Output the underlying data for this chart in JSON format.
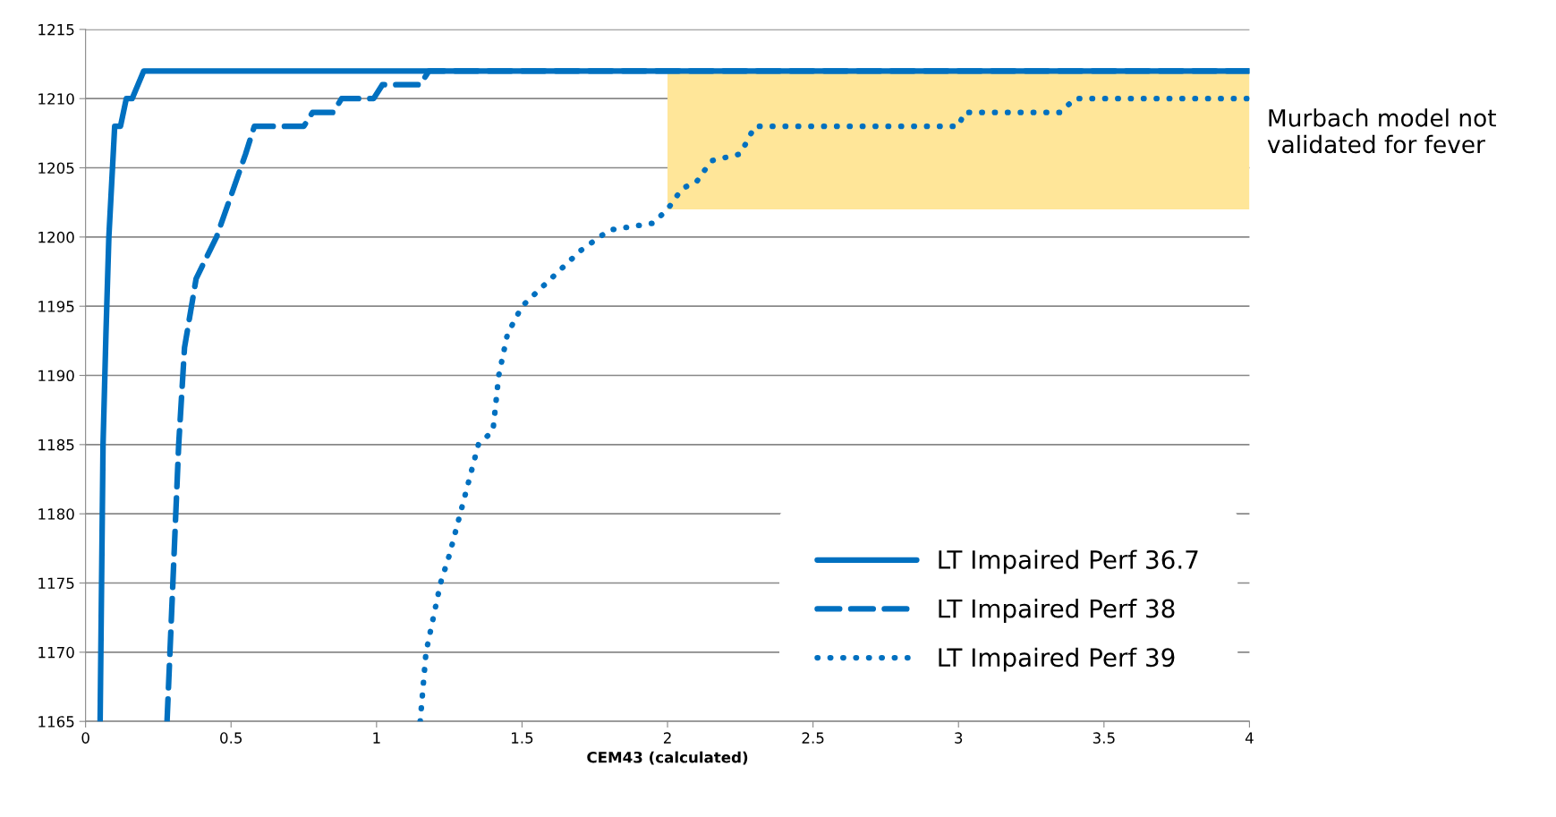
{
  "chart_data": {
    "type": "line",
    "xlabel": "CEM43 (calculated)",
    "xlim": [
      0,
      4
    ],
    "xticks": [
      0,
      0.5,
      1,
      1.5,
      2,
      2.5,
      3,
      3.5,
      4
    ],
    "ylim": [
      1165,
      1215
    ],
    "yticks": [
      1165,
      1170,
      1175,
      1180,
      1185,
      1190,
      1195,
      1200,
      1205,
      1210,
      1215
    ],
    "grid": "y",
    "legend": "bottom right",
    "marker": "none",
    "series": [
      {
        "name": "LT Impaired Perf 36.7",
        "color": "#0070c0",
        "line_style": "solid",
        "x": [
          0.05,
          0.06,
          0.07,
          0.08,
          0.1,
          0.12,
          0.14,
          0.16,
          0.2,
          4
        ],
        "values": [
          1165,
          1185,
          1193,
          1200,
          1208,
          1208,
          1210,
          1210,
          1212,
          1212
        ]
      },
      {
        "name": "LT Impaired Perf 38",
        "color": "#0070c0",
        "line_style": "dashed",
        "x": [
          0.28,
          0.3,
          0.32,
          0.34,
          0.38,
          0.45,
          0.5,
          0.55,
          0.58,
          0.75,
          0.78,
          0.85,
          0.88,
          0.99,
          1.02,
          1.15,
          1.18,
          4
        ],
        "values": [
          1165,
          1175,
          1185,
          1192,
          1197,
          1200,
          1203,
          1206,
          1208,
          1208,
          1209,
          1209,
          1210,
          1210,
          1211,
          1211,
          1212,
          1212
        ]
      },
      {
        "name": "LT Impaired Perf 39",
        "color": "#0070c0",
        "line_style": "dotted",
        "x": [
          1.15,
          1.17,
          1.2,
          1.22,
          1.25,
          1.3,
          1.35,
          1.4,
          1.42,
          1.45,
          1.5,
          1.55,
          1.6,
          1.7,
          1.8,
          1.95,
          2.0,
          2.05,
          2.1,
          2.15,
          2.25,
          2.3,
          3.0,
          3.02,
          3.35,
          3.4,
          4
        ],
        "values": [
          1165,
          1170,
          1173,
          1175,
          1177,
          1181,
          1185,
          1186,
          1190,
          1193,
          1195,
          1196,
          1197,
          1199,
          1200.5,
          1201,
          1202,
          1203.5,
          1204,
          1205.5,
          1206,
          1208,
          1208,
          1209,
          1209,
          1210,
          1210
        ]
      }
    ],
    "bands": [
      {
        "axis": "x",
        "from": 2,
        "to": 4,
        "color": "#ffe699",
        "label": "Murbach model not\nvalidated for fever"
      }
    ]
  }
}
